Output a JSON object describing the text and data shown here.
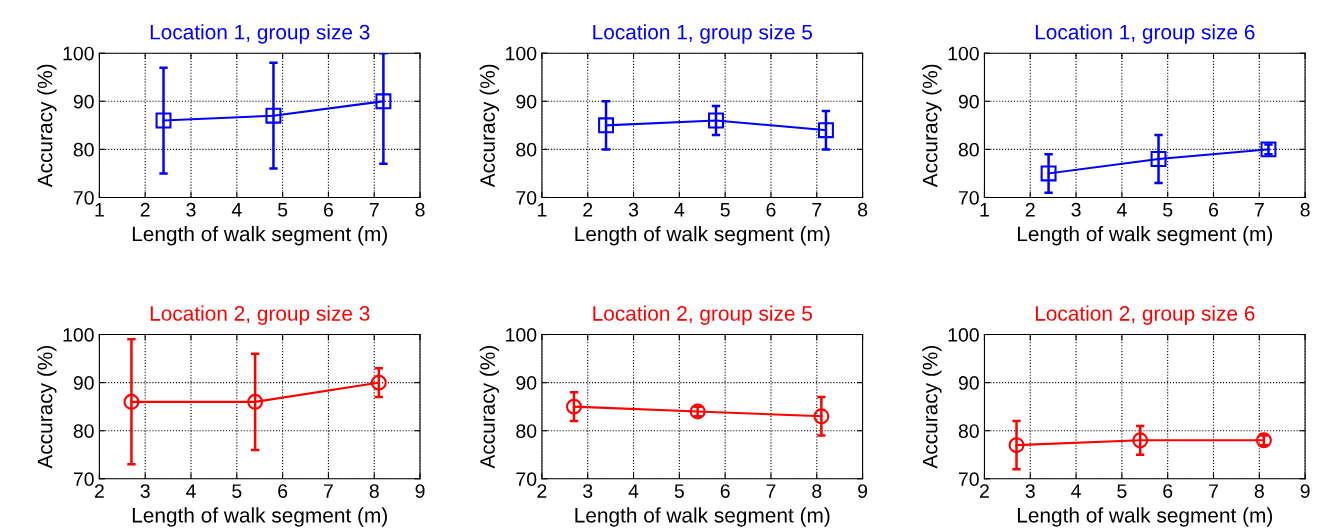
{
  "chart_data": [
    {
      "type": "line",
      "title": "Location 1, group size 3",
      "xlabel": "Length of walk segment (m)",
      "ylabel": "Accuracy (%)",
      "xlim": [
        1,
        8
      ],
      "xticks": [
        1,
        2,
        3,
        4,
        5,
        6,
        7,
        8
      ],
      "ylim": [
        70,
        100
      ],
      "yticks": [
        70,
        80,
        90,
        100
      ],
      "grid": true,
      "marker": "square",
      "line_style": "solid",
      "series": [
        {
          "color": "#0000ff",
          "x": [
            2.4,
            4.8,
            7.2
          ],
          "values": [
            86,
            87,
            90
          ],
          "errors": [
            [
              75,
              97
            ],
            [
              76,
              98
            ],
            [
              77,
              100
            ]
          ]
        }
      ]
    },
    {
      "type": "line",
      "title": "Location 1, group size 5",
      "xlabel": "Length of walk segment (m)",
      "ylabel": "Accuracy (%)",
      "xlim": [
        1,
        8
      ],
      "xticks": [
        1,
        2,
        3,
        4,
        5,
        6,
        7,
        8
      ],
      "ylim": [
        70,
        100
      ],
      "yticks": [
        70,
        80,
        90,
        100
      ],
      "grid": true,
      "marker": "square",
      "line_style": "solid",
      "series": [
        {
          "color": "#0000ff",
          "x": [
            2.4,
            4.8,
            7.2
          ],
          "values": [
            85,
            86,
            84
          ],
          "errors": [
            [
              80,
              90
            ],
            [
              83,
              89
            ],
            [
              80,
              88
            ]
          ]
        }
      ]
    },
    {
      "type": "line",
      "title": "Location 1, group size 6",
      "xlabel": "Length of walk segment (m)",
      "ylabel": "Accuracy (%)",
      "xlim": [
        1,
        8
      ],
      "xticks": [
        1,
        2,
        3,
        4,
        5,
        6,
        7,
        8
      ],
      "ylim": [
        70,
        100
      ],
      "yticks": [
        70,
        80,
        90,
        100
      ],
      "grid": true,
      "marker": "square",
      "line_style": "solid",
      "series": [
        {
          "color": "#0000ff",
          "x": [
            2.4,
            4.8,
            7.2
          ],
          "values": [
            75,
            78,
            80
          ],
          "errors": [
            [
              71,
              79
            ],
            [
              73,
              83
            ],
            [
              79,
              81
            ]
          ]
        }
      ]
    },
    {
      "type": "line",
      "title": "Location 2, group size 3",
      "xlabel": "Length of walk segment (m)",
      "ylabel": "Accuracy (%)",
      "xlim": [
        2,
        9
      ],
      "xticks": [
        2,
        3,
        4,
        5,
        6,
        7,
        8,
        9
      ],
      "ylim": [
        70,
        100
      ],
      "yticks": [
        70,
        80,
        90,
        100
      ],
      "grid": true,
      "marker": "circle",
      "line_style": "solid",
      "series": [
        {
          "color": "#ff0000",
          "x": [
            2.7,
            5.4,
            8.1
          ],
          "values": [
            86,
            86,
            90
          ],
          "errors": [
            [
              73,
              99
            ],
            [
              76,
              96
            ],
            [
              87,
              93
            ]
          ]
        }
      ]
    },
    {
      "type": "line",
      "title": "Location 2, group size 5",
      "xlabel": "Length of walk segment (m)",
      "ylabel": "Accuracy (%)",
      "xlim": [
        2,
        9
      ],
      "xticks": [
        2,
        3,
        4,
        5,
        6,
        7,
        8,
        9
      ],
      "ylim": [
        70,
        100
      ],
      "yticks": [
        70,
        80,
        90,
        100
      ],
      "grid": true,
      "marker": "circle",
      "line_style": "solid",
      "series": [
        {
          "color": "#ff0000",
          "x": [
            2.7,
            5.4,
            8.1
          ],
          "values": [
            85,
            84,
            83
          ],
          "errors": [
            [
              82,
              88
            ],
            [
              83,
              85
            ],
            [
              79,
              87
            ]
          ]
        }
      ]
    },
    {
      "type": "line",
      "title": "Location 2, group size 6",
      "xlabel": "Length of walk segment (m)",
      "ylabel": "Accuracy (%)",
      "xlim": [
        2,
        9
      ],
      "xticks": [
        2,
        3,
        4,
        5,
        6,
        7,
        8,
        9
      ],
      "ylim": [
        70,
        100
      ],
      "yticks": [
        70,
        80,
        90,
        100
      ],
      "grid": true,
      "marker": "circle",
      "line_style": "solid",
      "series": [
        {
          "color": "#ff0000",
          "x": [
            2.7,
            5.4,
            8.1
          ],
          "values": [
            77,
            78,
            78
          ],
          "errors": [
            [
              72,
              82
            ],
            [
              75,
              81
            ],
            [
              77,
              79
            ]
          ]
        }
      ]
    }
  ]
}
